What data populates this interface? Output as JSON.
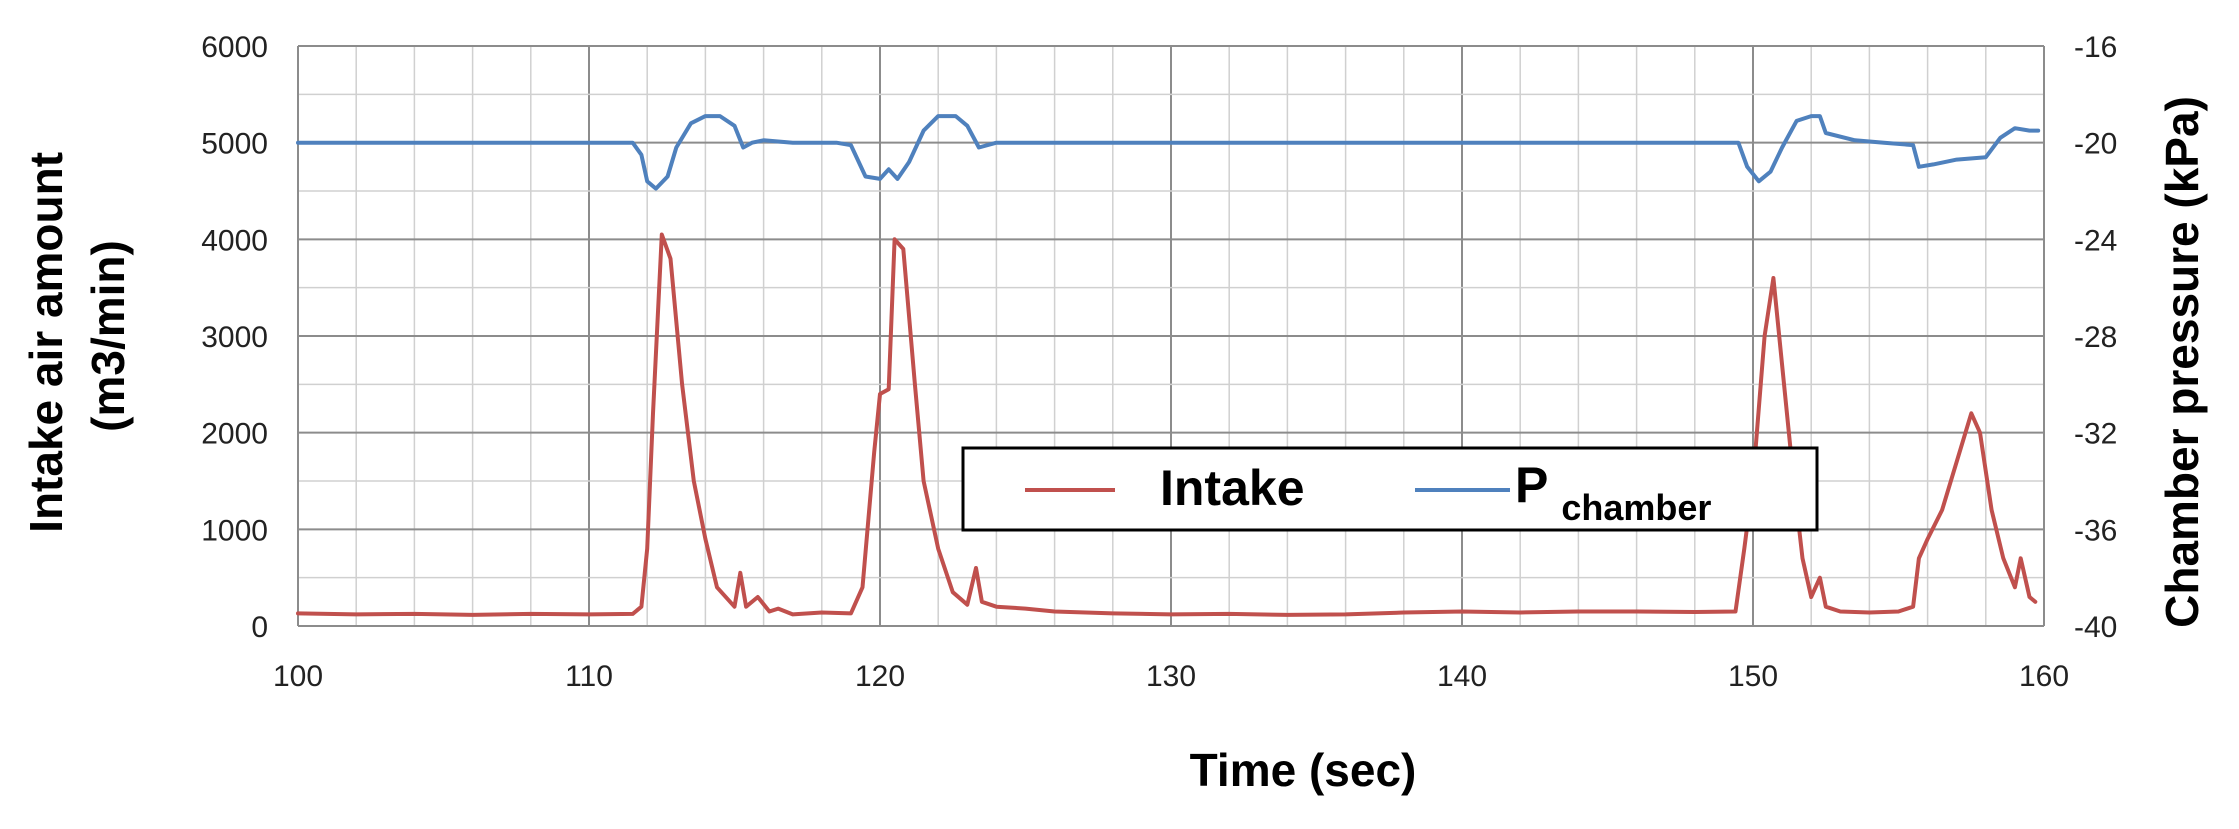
{
  "chart_data": {
    "type": "line",
    "xlabel": "Time (sec)",
    "ylabel": "Intake air amount (m3/min)",
    "ylabel_lines": [
      "Intake air amount",
      "(m3/min)"
    ],
    "y2label": "Chamber pressure (kPa)",
    "xlim": [
      100,
      160
    ],
    "ylim": [
      0,
      6000
    ],
    "y2lim": [
      -40,
      -16
    ],
    "x_ticks": [
      "100",
      "110",
      "120",
      "130",
      "140",
      "150",
      "160"
    ],
    "y_ticks": [
      "0",
      "1000",
      "2000",
      "3000",
      "4000",
      "5000",
      "6000"
    ],
    "y2_ticks": [
      "-40",
      "-36",
      "-32",
      "-28",
      "-24",
      "-20",
      "-16"
    ],
    "grid": true,
    "legend": {
      "placement": "lower-right",
      "entries": [
        {
          "text": "Intake",
          "sub": ""
        },
        {
          "text": "P",
          "sub": "chamber"
        }
      ]
    },
    "series": [
      {
        "name": "Intake",
        "axis": "left",
        "color": "#c0504d",
        "points": [
          [
            100,
            130
          ],
          [
            102,
            120
          ],
          [
            104,
            125
          ],
          [
            106,
            115
          ],
          [
            108,
            125
          ],
          [
            110,
            120
          ],
          [
            111.5,
            125
          ],
          [
            111.8,
            200
          ],
          [
            112,
            800
          ],
          [
            112.2,
            2200
          ],
          [
            112.5,
            4050
          ],
          [
            112.8,
            3800
          ],
          [
            113.2,
            2500
          ],
          [
            113.6,
            1500
          ],
          [
            114,
            900
          ],
          [
            114.4,
            400
          ],
          [
            115,
            200
          ],
          [
            115.2,
            550
          ],
          [
            115.4,
            200
          ],
          [
            115.8,
            300
          ],
          [
            116.2,
            150
          ],
          [
            116.5,
            180
          ],
          [
            117,
            120
          ],
          [
            118,
            140
          ],
          [
            119,
            130
          ],
          [
            119.4,
            400
          ],
          [
            119.8,
            1800
          ],
          [
            120,
            2400
          ],
          [
            120.3,
            2450
          ],
          [
            120.5,
            4000
          ],
          [
            120.8,
            3900
          ],
          [
            121.2,
            2500
          ],
          [
            121.5,
            1500
          ],
          [
            122,
            800
          ],
          [
            122.5,
            350
          ],
          [
            123,
            220
          ],
          [
            123.3,
            600
          ],
          [
            123.5,
            250
          ],
          [
            124,
            200
          ],
          [
            125,
            180
          ],
          [
            126,
            150
          ],
          [
            128,
            130
          ],
          [
            130,
            120
          ],
          [
            132,
            125
          ],
          [
            134,
            115
          ],
          [
            136,
            120
          ],
          [
            138,
            140
          ],
          [
            140,
            150
          ],
          [
            142,
            140
          ],
          [
            144,
            150
          ],
          [
            146,
            150
          ],
          [
            148,
            145
          ],
          [
            149.4,
            150
          ],
          [
            149.7,
            800
          ],
          [
            150,
            1500
          ],
          [
            150.4,
            3000
          ],
          [
            150.7,
            3600
          ],
          [
            151,
            2700
          ],
          [
            151.4,
            1500
          ],
          [
            151.7,
            700
          ],
          [
            152,
            300
          ],
          [
            152.3,
            500
          ],
          [
            152.5,
            200
          ],
          [
            153,
            150
          ],
          [
            154,
            140
          ],
          [
            155,
            150
          ],
          [
            155.5,
            200
          ],
          [
            155.7,
            700
          ],
          [
            156,
            900
          ],
          [
            156.5,
            1200
          ],
          [
            157,
            1700
          ],
          [
            157.5,
            2200
          ],
          [
            157.8,
            2000
          ],
          [
            158.2,
            1200
          ],
          [
            158.6,
            700
          ],
          [
            159,
            400
          ],
          [
            159.2,
            700
          ],
          [
            159.5,
            300
          ],
          [
            159.7,
            250
          ]
        ]
      },
      {
        "name": "Pchamber",
        "axis": "right",
        "color": "#4f81bd",
        "points": [
          [
            100,
            -20
          ],
          [
            111.5,
            -20
          ],
          [
            111.8,
            -20.5
          ],
          [
            112,
            -21.6
          ],
          [
            112.3,
            -21.9
          ],
          [
            112.7,
            -21.4
          ],
          [
            113,
            -20.2
          ],
          [
            113.5,
            -19.2
          ],
          [
            114,
            -18.9
          ],
          [
            114.5,
            -18.9
          ],
          [
            115,
            -19.3
          ],
          [
            115.3,
            -20.2
          ],
          [
            115.6,
            -20
          ],
          [
            116,
            -19.9
          ],
          [
            117,
            -20
          ],
          [
            118.5,
            -20
          ],
          [
            119,
            -20.1
          ],
          [
            119.5,
            -21.4
          ],
          [
            120,
            -21.5
          ],
          [
            120.3,
            -21.1
          ],
          [
            120.6,
            -21.5
          ],
          [
            121,
            -20.8
          ],
          [
            121.5,
            -19.5
          ],
          [
            122,
            -18.9
          ],
          [
            122.6,
            -18.9
          ],
          [
            123,
            -19.3
          ],
          [
            123.4,
            -20.2
          ],
          [
            124,
            -20
          ],
          [
            126,
            -20
          ],
          [
            130,
            -20
          ],
          [
            140,
            -20
          ],
          [
            149.5,
            -20
          ],
          [
            149.8,
            -21
          ],
          [
            150.2,
            -21.6
          ],
          [
            150.6,
            -21.2
          ],
          [
            151,
            -20.2
          ],
          [
            151.5,
            -19.1
          ],
          [
            152,
            -18.9
          ],
          [
            152.3,
            -18.9
          ],
          [
            152.5,
            -19.6
          ],
          [
            153.5,
            -19.9
          ],
          [
            154.5,
            -20
          ],
          [
            155.5,
            -20.1
          ],
          [
            155.7,
            -21
          ],
          [
            156.2,
            -20.9
          ],
          [
            157,
            -20.7
          ],
          [
            158,
            -20.6
          ],
          [
            158.5,
            -19.8
          ],
          [
            159,
            -19.4
          ],
          [
            159.5,
            -19.5
          ],
          [
            159.8,
            -19.5
          ]
        ]
      }
    ]
  }
}
